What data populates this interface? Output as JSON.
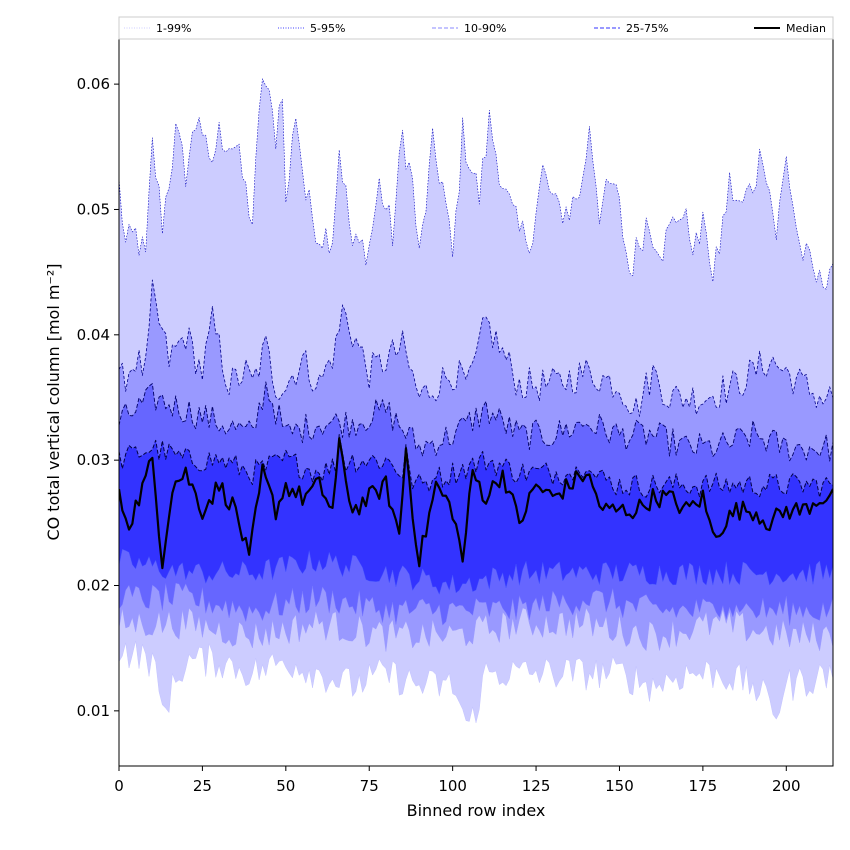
{
  "chart_data": {
    "type": "area",
    "xlabel": "Binned row index",
    "ylabel": "CO total vertical column [mol m⁻²]",
    "xlim": [
      0,
      214
    ],
    "ylim": [
      0.0056,
      0.0636
    ],
    "xticks": [
      "0",
      "25",
      "50",
      "75",
      "100",
      "125",
      "150",
      "175",
      "200"
    ],
    "yticks": [
      "0.01",
      "0.02",
      "0.03",
      "0.04",
      "0.05",
      "0.06"
    ],
    "grid": false,
    "legend_position": "top",
    "n_points": 215,
    "legend": [
      {
        "label": "1-99%",
        "style": "dotted",
        "color": "#ccccff"
      },
      {
        "label": "5-95%",
        "style": "dotted",
        "color": "#4040ff"
      },
      {
        "label": "10-90%",
        "style": "dashed",
        "color": "#8888ff"
      },
      {
        "label": "25-75%",
        "style": "dashed",
        "color": "#3333ff"
      },
      {
        "label": "Median",
        "style": "solid",
        "color": "#000000"
      }
    ],
    "series": [
      {
        "key": "p99",
        "anchors": [
          [
            0,
            0.052
          ],
          [
            2,
            0.047
          ],
          [
            5,
            0.048
          ],
          [
            8,
            0.046
          ],
          [
            10,
            0.055
          ],
          [
            13,
            0.049
          ],
          [
            17,
            0.056
          ],
          [
            20,
            0.053
          ],
          [
            24,
            0.058
          ],
          [
            27,
            0.053
          ],
          [
            30,
            0.056
          ],
          [
            35,
            0.055
          ],
          [
            40,
            0.049
          ],
          [
            43,
            0.061
          ],
          [
            47,
            0.056
          ],
          [
            49,
            0.06
          ],
          [
            50,
            0.05
          ],
          [
            53,
            0.058
          ],
          [
            56,
            0.051
          ],
          [
            60,
            0.048
          ],
          [
            64,
            0.048
          ],
          [
            66,
            0.055
          ],
          [
            70,
            0.047
          ],
          [
            75,
            0.047
          ],
          [
            78,
            0.052
          ],
          [
            82,
            0.048
          ],
          [
            85,
            0.056
          ],
          [
            88,
            0.052
          ],
          [
            90,
            0.046
          ],
          [
            94,
            0.055
          ],
          [
            97,
            0.052
          ],
          [
            100,
            0.046
          ],
          [
            103,
            0.056
          ],
          [
            108,
            0.051
          ],
          [
            111,
            0.057
          ],
          [
            116,
            0.051
          ],
          [
            120,
            0.048
          ],
          [
            124,
            0.048
          ],
          [
            127,
            0.053
          ],
          [
            131,
            0.05
          ],
          [
            135,
            0.05
          ],
          [
            139,
            0.052
          ],
          [
            141,
            0.057
          ],
          [
            144,
            0.05
          ],
          [
            148,
            0.052
          ],
          [
            150,
            0.05
          ],
          [
            153,
            0.045
          ],
          [
            158,
            0.049
          ],
          [
            163,
            0.047
          ],
          [
            168,
            0.05
          ],
          [
            173,
            0.047
          ],
          [
            176,
            0.049
          ],
          [
            178,
            0.044
          ],
          [
            183,
            0.052
          ],
          [
            186,
            0.05
          ],
          [
            190,
            0.052
          ],
          [
            193,
            0.055
          ],
          [
            197,
            0.048
          ],
          [
            200,
            0.054
          ],
          [
            204,
            0.047
          ],
          [
            210,
            0.044
          ],
          [
            214,
            0.046
          ]
        ],
        "noise": 0.0015
      },
      {
        "key": "p95",
        "anchors": [
          [
            0,
            0.036
          ],
          [
            5,
            0.038
          ],
          [
            8,
            0.037
          ],
          [
            10,
            0.043
          ],
          [
            15,
            0.038
          ],
          [
            20,
            0.04
          ],
          [
            25,
            0.037
          ],
          [
            28,
            0.041
          ],
          [
            33,
            0.036
          ],
          [
            38,
            0.037
          ],
          [
            40,
            0.036
          ],
          [
            44,
            0.039
          ],
          [
            47,
            0.036
          ],
          [
            50,
            0.036
          ],
          [
            55,
            0.038
          ],
          [
            60,
            0.036
          ],
          [
            65,
            0.039
          ],
          [
            67,
            0.042
          ],
          [
            75,
            0.037
          ],
          [
            85,
            0.039
          ],
          [
            90,
            0.035
          ],
          [
            100,
            0.037
          ],
          [
            105,
            0.036
          ],
          [
            110,
            0.041
          ],
          [
            120,
            0.036
          ],
          [
            130,
            0.036
          ],
          [
            140,
            0.037
          ],
          [
            150,
            0.036
          ],
          [
            155,
            0.034
          ],
          [
            160,
            0.037
          ],
          [
            165,
            0.035
          ],
          [
            175,
            0.035
          ],
          [
            185,
            0.036
          ],
          [
            195,
            0.038
          ],
          [
            205,
            0.036
          ],
          [
            210,
            0.035
          ],
          [
            214,
            0.035
          ]
        ],
        "noise": 0.0014
      },
      {
        "key": "p90",
        "anchors": [
          [
            0,
            0.033
          ],
          [
            10,
            0.035
          ],
          [
            20,
            0.034
          ],
          [
            30,
            0.033
          ],
          [
            40,
            0.032
          ],
          [
            44,
            0.036
          ],
          [
            50,
            0.032
          ],
          [
            60,
            0.033
          ],
          [
            70,
            0.033
          ],
          [
            80,
            0.034
          ],
          [
            90,
            0.031
          ],
          [
            100,
            0.032
          ],
          [
            110,
            0.034
          ],
          [
            120,
            0.032
          ],
          [
            130,
            0.032
          ],
          [
            140,
            0.033
          ],
          [
            150,
            0.032
          ],
          [
            160,
            0.032
          ],
          [
            170,
            0.031
          ],
          [
            180,
            0.031
          ],
          [
            190,
            0.032
          ],
          [
            200,
            0.031
          ],
          [
            214,
            0.031
          ]
        ],
        "noise": 0.0012
      },
      {
        "key": "p75",
        "anchors": [
          [
            0,
            0.03
          ],
          [
            10,
            0.031
          ],
          [
            20,
            0.03
          ],
          [
            30,
            0.03
          ],
          [
            40,
            0.029
          ],
          [
            50,
            0.03
          ],
          [
            60,
            0.029
          ],
          [
            70,
            0.03
          ],
          [
            80,
            0.03
          ],
          [
            90,
            0.028
          ],
          [
            100,
            0.029
          ],
          [
            110,
            0.03
          ],
          [
            120,
            0.029
          ],
          [
            130,
            0.029
          ],
          [
            140,
            0.029
          ],
          [
            150,
            0.028
          ],
          [
            160,
            0.028
          ],
          [
            170,
            0.028
          ],
          [
            180,
            0.028
          ],
          [
            190,
            0.028
          ],
          [
            200,
            0.028
          ],
          [
            214,
            0.028
          ]
        ],
        "noise": 0.001
      },
      {
        "key": "p50",
        "anchors": [
          [
            0,
            0.027
          ],
          [
            3,
            0.025
          ],
          [
            6,
            0.027
          ],
          [
            10,
            0.03
          ],
          [
            13,
            0.022
          ],
          [
            16,
            0.028
          ],
          [
            20,
            0.029
          ],
          [
            25,
            0.026
          ],
          [
            30,
            0.028
          ],
          [
            35,
            0.026
          ],
          [
            39,
            0.022
          ],
          [
            43,
            0.029
          ],
          [
            47,
            0.026
          ],
          [
            50,
            0.028
          ],
          [
            55,
            0.027
          ],
          [
            60,
            0.028
          ],
          [
            64,
            0.026
          ],
          [
            66,
            0.031
          ],
          [
            70,
            0.026
          ],
          [
            75,
            0.027
          ],
          [
            80,
            0.028
          ],
          [
            84,
            0.024
          ],
          [
            86,
            0.031
          ],
          [
            88,
            0.026
          ],
          [
            90,
            0.022
          ],
          [
            95,
            0.028
          ],
          [
            100,
            0.026
          ],
          [
            103,
            0.022
          ],
          [
            106,
            0.029
          ],
          [
            110,
            0.027
          ],
          [
            115,
            0.029
          ],
          [
            120,
            0.025
          ],
          [
            125,
            0.028
          ],
          [
            130,
            0.027
          ],
          [
            135,
            0.028
          ],
          [
            140,
            0.029
          ],
          [
            145,
            0.026
          ],
          [
            150,
            0.026
          ],
          [
            155,
            0.026
          ],
          [
            160,
            0.027
          ],
          [
            165,
            0.027
          ],
          [
            170,
            0.026
          ],
          [
            175,
            0.027
          ],
          [
            178,
            0.024
          ],
          [
            185,
            0.026
          ],
          [
            190,
            0.026
          ],
          [
            195,
            0.025
          ],
          [
            200,
            0.026
          ],
          [
            205,
            0.026
          ],
          [
            210,
            0.027
          ],
          [
            214,
            0.027
          ]
        ],
        "noise": 0.0008
      },
      {
        "key": "p25",
        "anchors": [
          [
            0,
            0.022
          ],
          [
            20,
            0.021
          ],
          [
            40,
            0.021
          ],
          [
            60,
            0.022
          ],
          [
            80,
            0.021
          ],
          [
            100,
            0.02
          ],
          [
            120,
            0.021
          ],
          [
            140,
            0.021
          ],
          [
            160,
            0.021
          ],
          [
            180,
            0.021
          ],
          [
            200,
            0.021
          ],
          [
            214,
            0.021
          ]
        ],
        "noise": 0.001
      },
      {
        "key": "p10",
        "anchors": [
          [
            0,
            0.019
          ],
          [
            20,
            0.019
          ],
          [
            40,
            0.018
          ],
          [
            60,
            0.019
          ],
          [
            80,
            0.018
          ],
          [
            100,
            0.018
          ],
          [
            120,
            0.018
          ],
          [
            140,
            0.019
          ],
          [
            160,
            0.018
          ],
          [
            180,
            0.018
          ],
          [
            200,
            0.018
          ],
          [
            214,
            0.018
          ]
        ],
        "noise": 0.0012
      },
      {
        "key": "p5",
        "anchors": [
          [
            0,
            0.017
          ],
          [
            20,
            0.017
          ],
          [
            40,
            0.016
          ],
          [
            60,
            0.017
          ],
          [
            80,
            0.016
          ],
          [
            100,
            0.016
          ],
          [
            120,
            0.017
          ],
          [
            140,
            0.017
          ],
          [
            160,
            0.016
          ],
          [
            180,
            0.017
          ],
          [
            200,
            0.016
          ],
          [
            214,
            0.016
          ]
        ],
        "noise": 0.0013
      },
      {
        "key": "p1",
        "anchors": [
          [
            0,
            0.015
          ],
          [
            10,
            0.014
          ],
          [
            13,
            0.01
          ],
          [
            20,
            0.014
          ],
          [
            30,
            0.014
          ],
          [
            40,
            0.013
          ],
          [
            50,
            0.014
          ],
          [
            60,
            0.013
          ],
          [
            70,
            0.012
          ],
          [
            80,
            0.013
          ],
          [
            90,
            0.012
          ],
          [
            100,
            0.012
          ],
          [
            105,
            0.0085
          ],
          [
            110,
            0.013
          ],
          [
            120,
            0.013
          ],
          [
            130,
            0.013
          ],
          [
            140,
            0.013
          ],
          [
            150,
            0.013
          ],
          [
            160,
            0.012
          ],
          [
            170,
            0.013
          ],
          [
            180,
            0.013
          ],
          [
            190,
            0.012
          ],
          [
            197,
            0.01
          ],
          [
            200,
            0.012
          ],
          [
            214,
            0.013
          ]
        ],
        "noise": 0.0014
      }
    ],
    "bands": [
      {
        "lower": "p1",
        "upper": "p99",
        "fill": "#ccccff"
      },
      {
        "lower": "p5",
        "upper": "p95",
        "fill": "#9999ff"
      },
      {
        "lower": "p10",
        "upper": "p90",
        "fill": "#6666ff"
      },
      {
        "lower": "p25",
        "upper": "p75",
        "fill": "#3333ff"
      }
    ]
  }
}
